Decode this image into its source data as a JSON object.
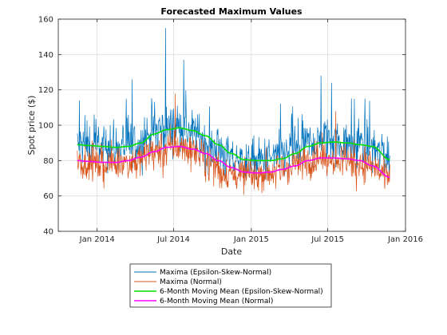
{
  "chart_data": {
    "type": "line",
    "title": "Forecasted Maximum Values",
    "xlabel": "Date",
    "ylabel": "Spot price ($)",
    "xlim": [
      "2013-10-01",
      "2016-01-01"
    ],
    "ylim": [
      40,
      160
    ],
    "x_ticks": [
      "2014-01-01",
      "2014-07-01",
      "2015-01-01",
      "2015-07-01",
      "2016-01-01"
    ],
    "x_tick_labels": [
      "Jan 2014",
      "Jul 2014",
      "Jan 2015",
      "Jul 2015",
      "Jan 2016"
    ],
    "y_ticks": [
      40,
      60,
      80,
      100,
      120,
      140,
      160
    ],
    "grid": true,
    "legend_position": "below-plot",
    "series": [
      {
        "name": "Maxima (Epsilon-Skew-Normal)",
        "color": "#0072BD",
        "style": "noisy-daily",
        "x": [
          "2013-11-15",
          "2014-01-01",
          "2014-02-15",
          "2014-04-01",
          "2014-05-15",
          "2014-07-01",
          "2014-08-15",
          "2014-10-01",
          "2014-11-15",
          "2015-01-01",
          "2015-02-15",
          "2015-04-01",
          "2015-05-15",
          "2015-07-01",
          "2015-08-15",
          "2015-10-01",
          "2015-11-25"
        ],
        "y": [
          89,
          88,
          87,
          89,
          96,
          99,
          96,
          86,
          80,
          79,
          81,
          85,
          89,
          91,
          90,
          88,
          81
        ],
        "peaks": [
          [
            "2013-11-20",
            114
          ],
          [
            "2014-03-25",
            126
          ],
          [
            "2014-06-12",
            155
          ],
          [
            "2014-07-25",
            137
          ],
          [
            "2015-06-15",
            128
          ],
          [
            "2015-07-10",
            124
          ]
        ]
      },
      {
        "name": "Maxima (Normal)",
        "color": "#D95319",
        "style": "noisy-daily",
        "x": [
          "2013-11-15",
          "2014-01-01",
          "2014-02-15",
          "2014-04-01",
          "2014-05-15",
          "2014-07-01",
          "2014-08-15",
          "2014-10-01",
          "2014-11-15",
          "2015-01-01",
          "2015-02-15",
          "2015-04-01",
          "2015-05-15",
          "2015-07-01",
          "2015-08-15",
          "2015-10-01",
          "2015-11-25"
        ],
        "y": [
          80,
          79,
          79,
          80,
          85,
          88,
          86,
          78,
          73,
          72,
          74,
          77,
          80,
          82,
          81,
          78,
          70
        ],
        "peaks": [
          [
            "2014-07-05",
            118
          ],
          [
            "2015-07-20",
            108
          ]
        ]
      },
      {
        "name": "6-Month Moving Mean (Epsilon-Skew-Normal)",
        "color": "#00E000",
        "style": "smooth",
        "x": [
          "2013-11-15",
          "2013-12-15",
          "2014-01-15",
          "2014-02-15",
          "2014-03-15",
          "2014-04-15",
          "2014-05-15",
          "2014-06-15",
          "2014-07-15",
          "2014-08-15",
          "2014-09-15",
          "2014-10-15",
          "2014-11-15",
          "2014-12-15",
          "2015-01-15",
          "2015-02-15",
          "2015-03-15",
          "2015-04-15",
          "2015-05-15",
          "2015-06-15",
          "2015-07-15",
          "2015-08-15",
          "2015-09-15",
          "2015-10-15",
          "2015-11-25"
        ],
        "y": [
          89,
          88.5,
          88,
          87.5,
          88,
          90,
          95,
          97.5,
          98.5,
          97,
          94,
          89,
          84,
          80.5,
          80,
          80,
          81,
          84,
          88,
          90,
          90.5,
          90,
          89,
          88,
          80.5
        ]
      },
      {
        "name": "6-Month Moving Mean (Normal)",
        "color": "#FF00FF",
        "style": "smooth",
        "x": [
          "2013-11-15",
          "2013-12-15",
          "2014-01-15",
          "2014-02-15",
          "2014-03-15",
          "2014-04-15",
          "2014-05-15",
          "2014-06-15",
          "2014-07-15",
          "2014-08-15",
          "2014-09-15",
          "2014-10-15",
          "2014-11-15",
          "2014-12-15",
          "2015-01-15",
          "2015-02-15",
          "2015-03-15",
          "2015-04-15",
          "2015-05-15",
          "2015-06-15",
          "2015-07-15",
          "2015-08-15",
          "2015-09-15",
          "2015-10-15",
          "2015-11-25"
        ],
        "y": [
          80,
          79.5,
          79,
          79,
          80,
          82,
          85,
          87.5,
          88,
          86.5,
          84,
          80,
          76,
          73.5,
          73,
          73.5,
          75,
          77,
          80,
          81.5,
          81.5,
          81,
          80,
          77,
          70.5
        ]
      }
    ]
  }
}
